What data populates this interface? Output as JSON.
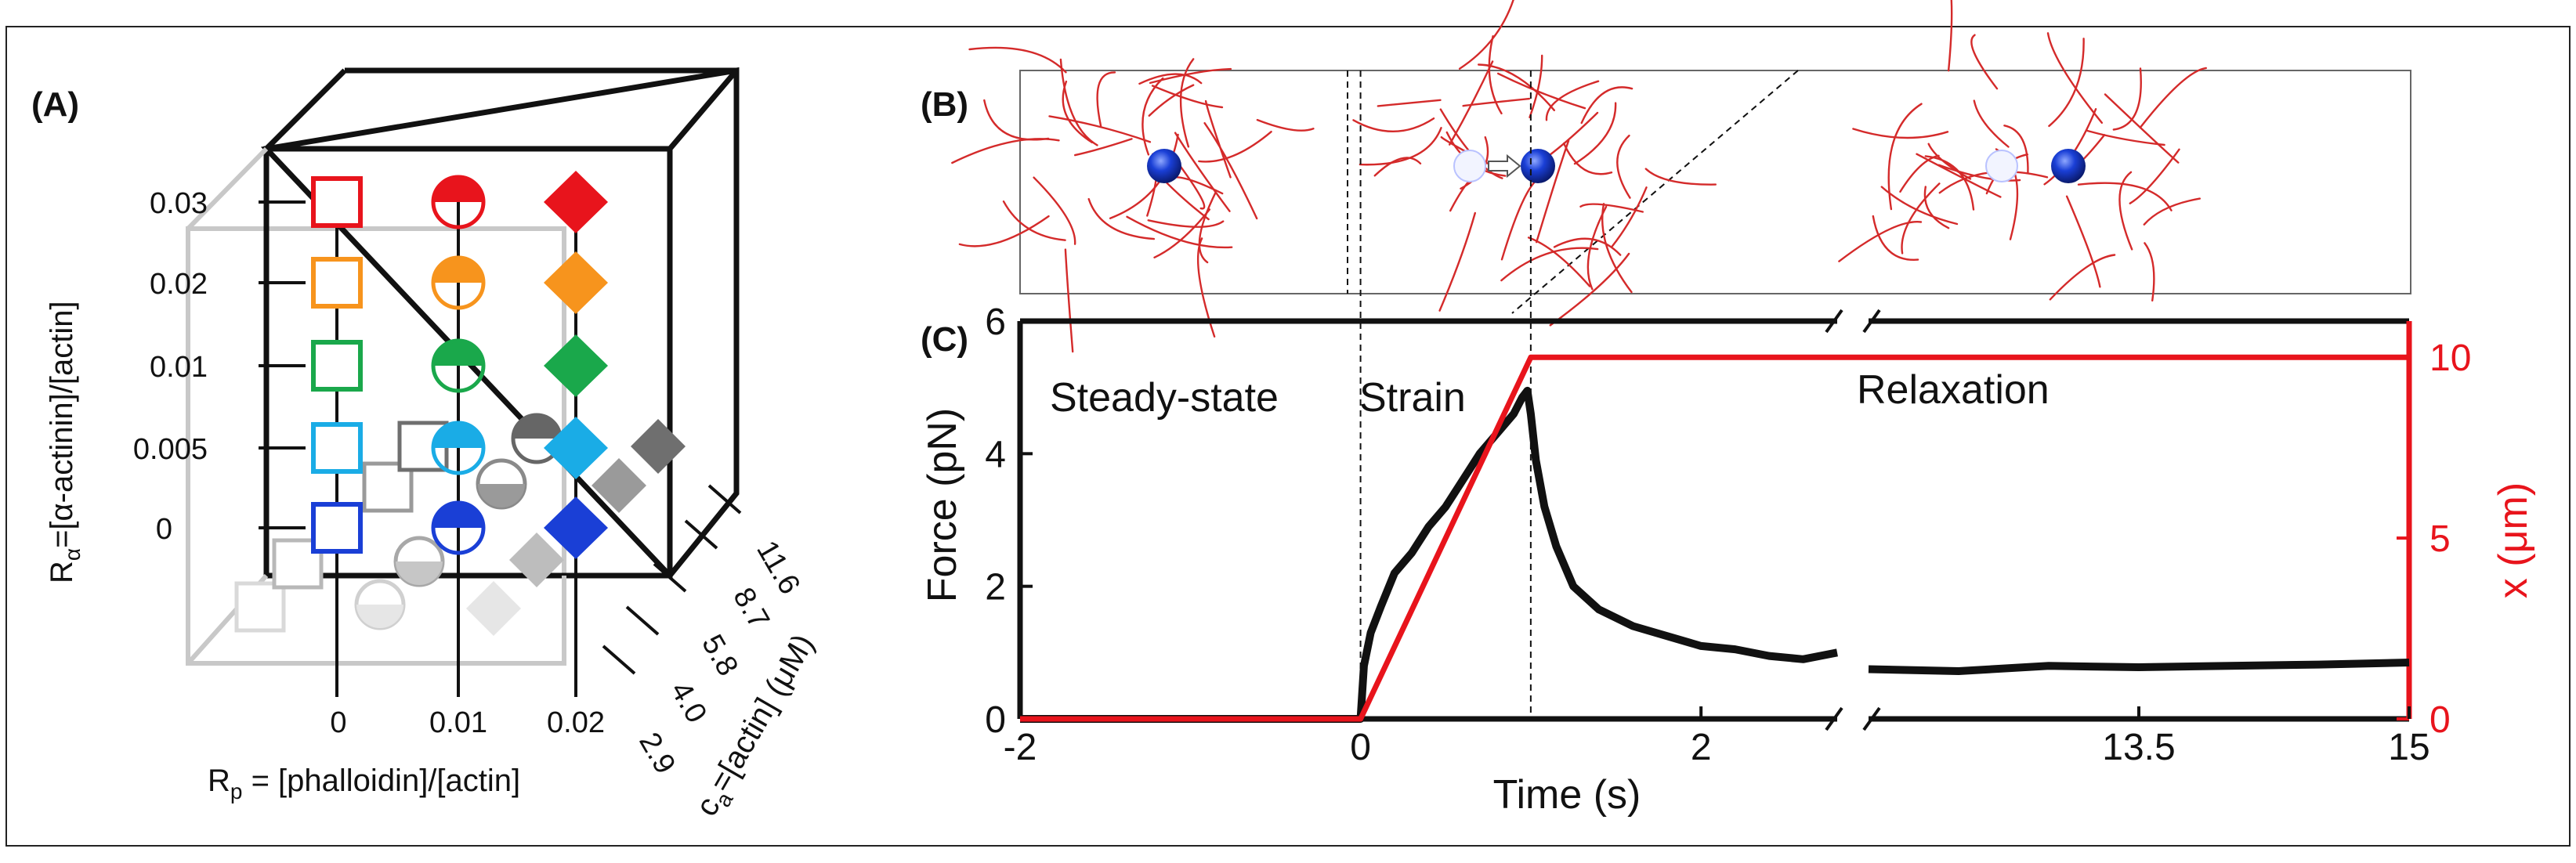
{
  "colors": {
    "red": "#e8141c",
    "orange": "#f7941d",
    "green": "#1aa84b",
    "cyan": "#1aace6",
    "blue": "#1a3fd6",
    "black": "#111111",
    "axis_red": "#e8141c"
  },
  "panel_a": {
    "label": "(A)",
    "y_axis_label_main": "R",
    "y_axis_label_sub": "α",
    "y_axis_label_rest": "=[α-actinin]/[actin]",
    "x_axis_label_main": "R",
    "x_axis_label_sub": "p",
    "x_axis_label_rest": " = [phalloidin]/[actin]",
    "z_axis_label_main": "c",
    "z_axis_label_sub": "a",
    "z_axis_label_rest": "=[actin] (μM)",
    "r_alpha_ticks": [
      "0.03",
      "0.02",
      "0.01",
      "0.005",
      "0"
    ],
    "r_p_ticks": [
      "0",
      "0.01",
      "0.02"
    ],
    "c_a_ticks": [
      "2.9",
      "4.0",
      "5.8",
      "8.7",
      "11.6"
    ],
    "marker_legend": [
      {
        "r_p": "0",
        "marker": "open-square"
      },
      {
        "r_p": "0.01",
        "marker": "half-filled-circle"
      },
      {
        "r_p": "0.02",
        "marker": "filled-diamond"
      }
    ]
  },
  "panel_b": {
    "label": "(B)",
    "frames": [
      "steady-state",
      "strain",
      "relaxation"
    ]
  },
  "panel_c": {
    "label": "(C)",
    "xlabel": "Time (s)",
    "ylabel_left": "Force (pN)",
    "ylabel_right_main": "x (",
    "ylabel_right_unit": "μm",
    "ylabel_right_close": ")",
    "regions": [
      "Steady-state",
      "Strain",
      "Relaxation"
    ]
  },
  "chart_data": {
    "type": "line",
    "title": "",
    "xlabel": "Time (s)",
    "ylabel": "Force (pN)",
    "ylabel_right": "x (μm)",
    "x_ticks": [
      "-2",
      "0",
      "2",
      "13.5",
      "15"
    ],
    "y_ticks": [
      "0",
      "2",
      "4",
      "6"
    ],
    "y2_ticks": [
      "0",
      "5",
      "10"
    ],
    "xlim": [
      -2,
      15
    ],
    "ylim": [
      0,
      6
    ],
    "y2lim": [
      0,
      11
    ],
    "axis_break": [
      2.8,
      12.0
    ],
    "series": [
      {
        "name": "Force",
        "axis": "left",
        "color": "#111111",
        "x": [
          -2,
          -1,
          0,
          0.02,
          0.06,
          0.12,
          0.2,
          0.3,
          0.4,
          0.5,
          0.6,
          0.7,
          0.8,
          0.9,
          0.95,
          0.98,
          1.0,
          1.03,
          1.08,
          1.15,
          1.25,
          1.4,
          1.6,
          1.8,
          2.0,
          2.2,
          2.4,
          2.6,
          2.8,
          12.0,
          12.5,
          13.0,
          13.5,
          14.0,
          14.5,
          15.0
        ],
        "y": [
          0,
          0,
          0,
          0.8,
          1.3,
          1.7,
          2.2,
          2.5,
          2.9,
          3.2,
          3.6,
          4.0,
          4.3,
          4.6,
          4.85,
          4.95,
          4.6,
          3.9,
          3.2,
          2.6,
          2.0,
          1.65,
          1.4,
          1.25,
          1.1,
          1.05,
          0.95,
          0.9,
          1.0,
          0.75,
          0.72,
          0.8,
          0.78,
          0.8,
          0.82,
          0.85
        ]
      },
      {
        "name": "x (position)",
        "axis": "right",
        "color": "#e8141c",
        "x": [
          -2,
          0,
          1,
          2.8,
          12.0,
          15
        ],
        "y": [
          0,
          0,
          10,
          10,
          10,
          10
        ]
      }
    ]
  }
}
